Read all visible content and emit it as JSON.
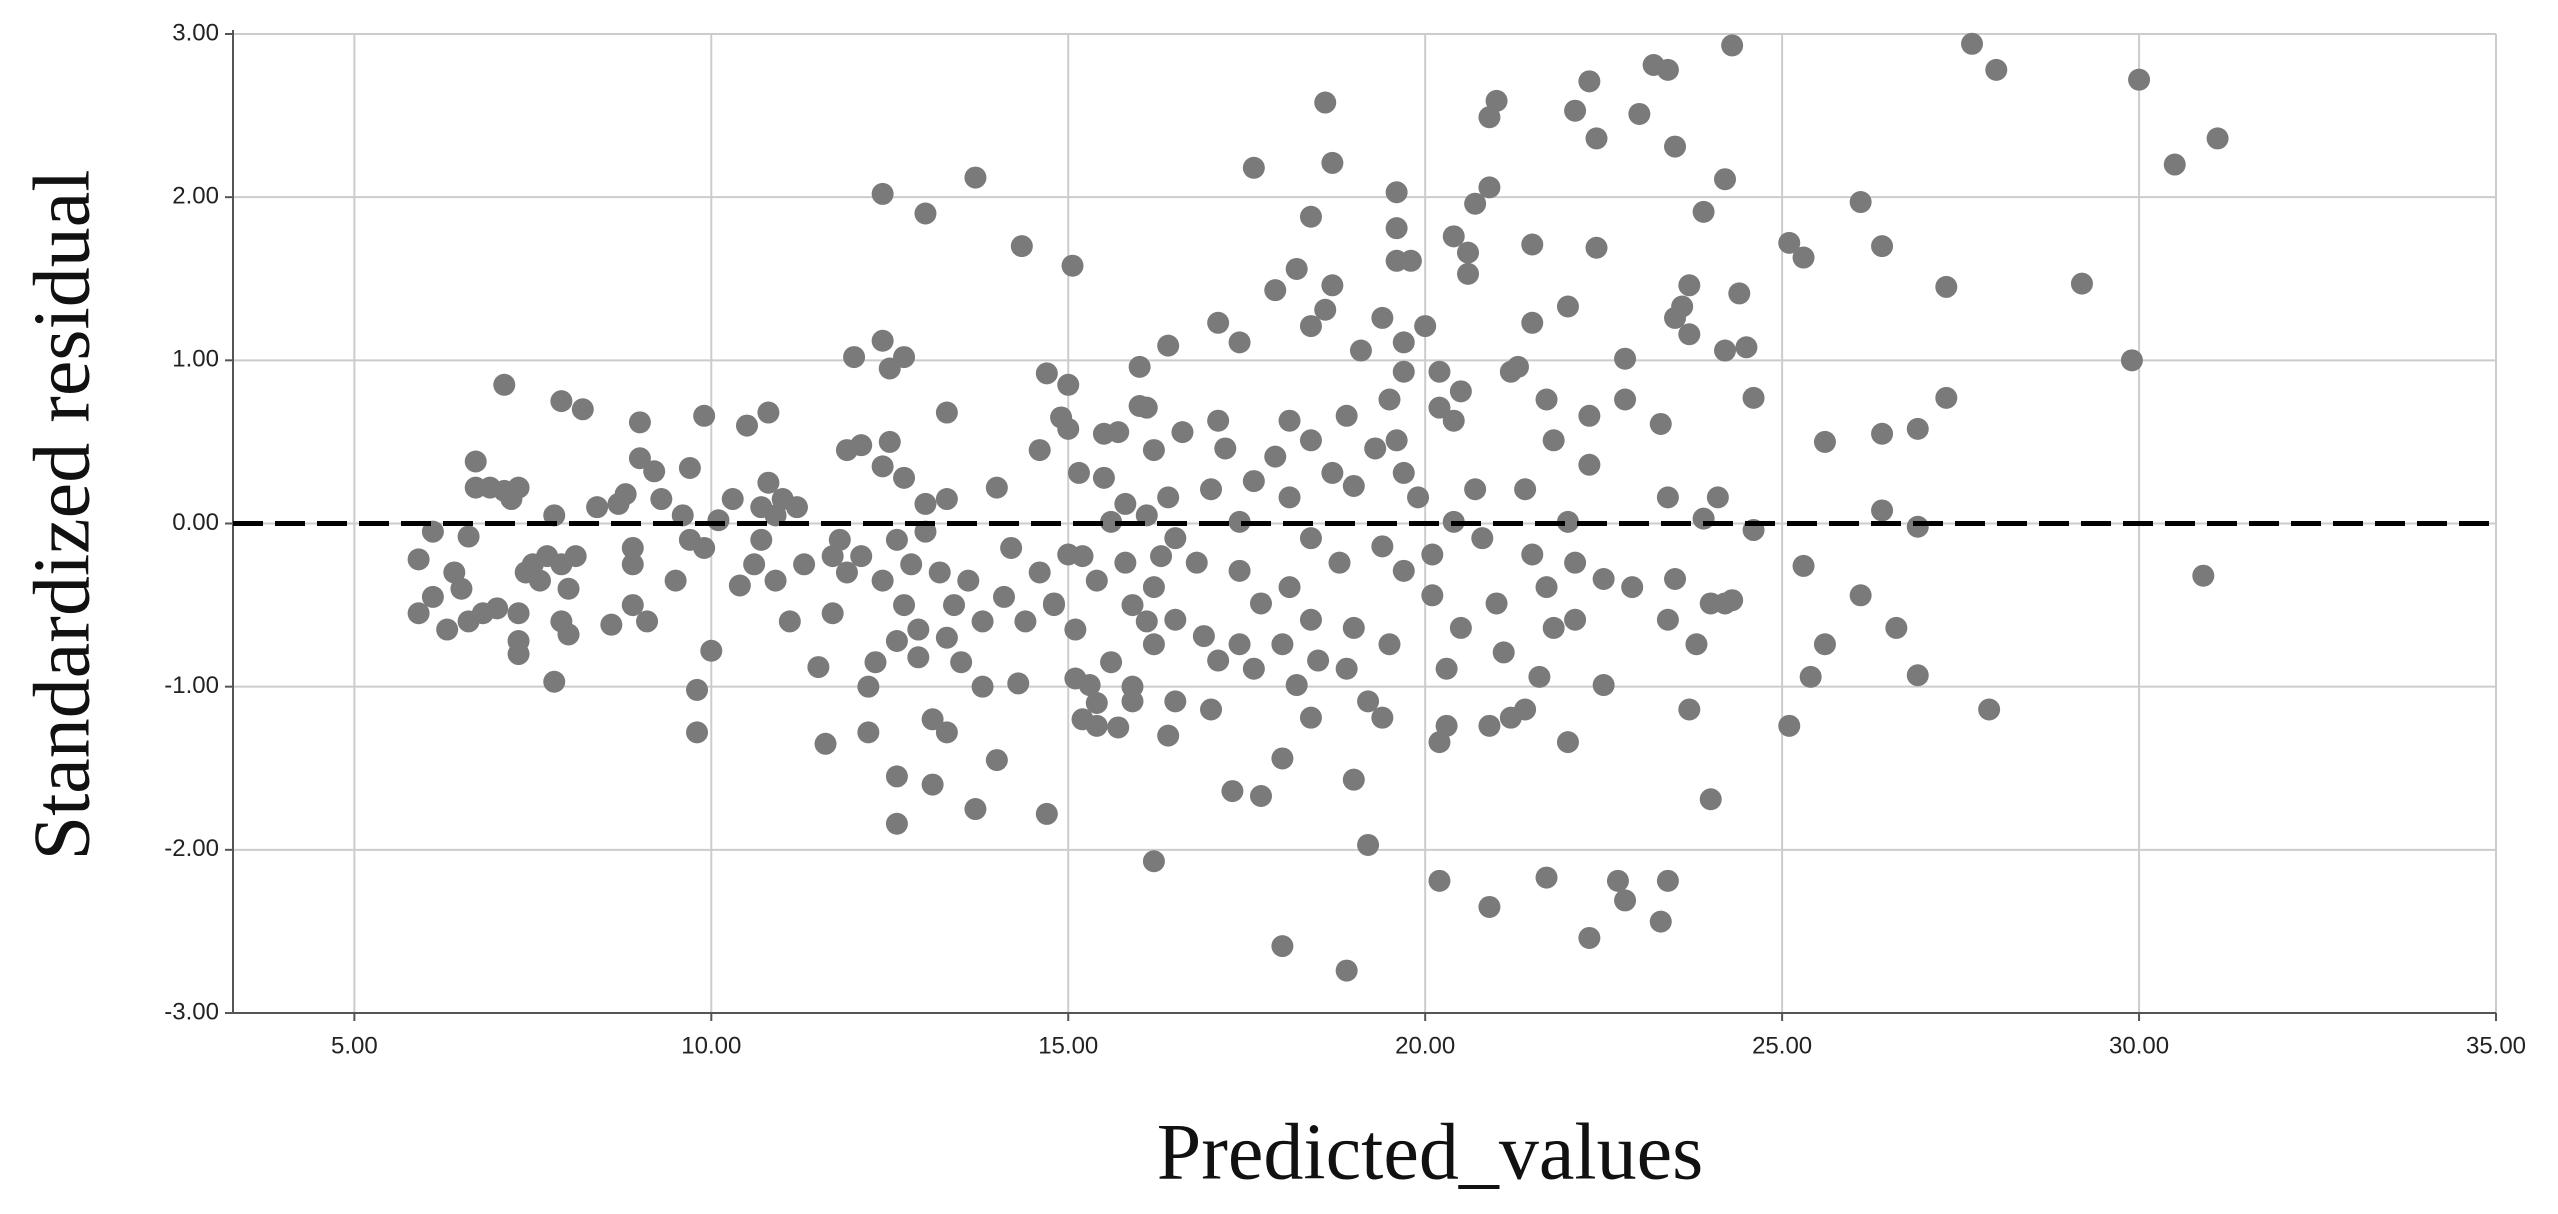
{
  "chart_data": {
    "type": "scatter",
    "x_label": "Predicted_values",
    "y_label": "Standardized residual",
    "color": "#7a7a7a",
    "grid": true,
    "xlim": [
      3.3,
      35.0
    ],
    "ylim": [
      -3.0,
      3.0
    ],
    "xticks": [
      {
        "value": 5,
        "label": "5.00"
      },
      {
        "value": 10,
        "label": "10.00"
      },
      {
        "value": 15,
        "label": "15.00"
      },
      {
        "value": 20,
        "label": "20.00"
      },
      {
        "value": 25,
        "label": "25.00"
      },
      {
        "value": 30,
        "label": "30.00"
      },
      {
        "value": 35,
        "label": "35.00"
      }
    ],
    "yticks": [
      {
        "value": -3,
        "label": "-3.00"
      },
      {
        "value": -2,
        "label": "-2.00"
      },
      {
        "value": -1,
        "label": "-1.00"
      },
      {
        "value": 0,
        "label": "0.00"
      },
      {
        "value": 1,
        "label": "1.00"
      },
      {
        "value": 2,
        "label": "2.00"
      },
      {
        "value": 3,
        "label": "3.00"
      }
    ],
    "reference_line": {
      "value": 0,
      "style": "dashed",
      "color": "#000000"
    },
    "x": [
      5.9,
      5.9,
      6.1,
      6.1,
      6.3,
      6.4,
      6.5,
      6.6,
      6.6,
      6.7,
      6.7,
      6.8,
      6.9,
      7.0,
      7.1,
      7.1,
      7.2,
      7.3,
      7.3,
      7.3,
      7.3,
      7.4,
      7.5,
      7.6,
      7.7,
      7.8,
      7.8,
      7.9,
      7.9,
      7.9,
      8.0,
      8.0,
      8.1,
      8.2,
      8.4,
      8.6,
      8.7,
      8.8,
      8.9,
      8.9,
      8.9,
      9.0,
      9.0,
      9.1,
      9.2,
      9.3,
      9.5,
      9.6,
      9.7,
      9.7,
      9.8,
      9.8,
      9.9,
      9.9,
      10.0,
      10.1,
      10.3,
      10.4,
      10.5,
      10.6,
      10.7,
      10.7,
      10.8,
      10.8,
      10.9,
      10.9,
      11.0,
      11.1,
      11.2,
      11.3,
      11.5,
      11.6,
      11.7,
      11.7,
      11.8,
      11.9,
      11.9,
      12.0,
      12.1,
      12.1,
      12.2,
      12.2,
      12.3,
      12.4,
      12.4,
      12.4,
      12.4,
      12.5,
      12.5,
      12.6,
      12.6,
      12.6,
      12.6,
      12.7,
      12.7,
      12.7,
      12.8,
      12.9,
      12.9,
      13.0,
      13.0,
      13.1,
      13.1,
      13.0,
      13.2,
      13.3,
      13.3,
      13.3,
      13.3,
      13.4,
      13.5,
      13.6,
      13.7,
      13.8,
      13.8,
      13.7,
      14.0,
      14.0,
      14.1,
      14.2,
      14.3,
      14.4,
      14.35,
      14.6,
      14.6,
      14.7,
      14.7,
      14.8,
      14.9,
      15.0,
      15.0,
      15.1,
      15.1,
      15.2,
      15.2,
      15.06,
      15.4,
      15.4,
      15.5,
      15.5,
      15.6,
      15.7,
      15.8,
      15.9,
      15.9,
      16.0,
      16.1,
      16.1,
      16.2,
      16.3,
      16.4,
      16.2,
      15.15,
      15.7,
      16.1,
      16.4,
      16.0,
      15.6,
      15.8,
      16.2,
      16.5,
      16.8,
      17.0,
      16.9,
      16.5,
      17.1,
      17.0,
      17.2,
      16.5,
      16.2,
      15.9,
      15.4,
      15.3,
      14.8,
      15.0,
      16.4,
      16.6,
      17.4,
      17.4,
      17.6,
      18.6,
      18.7,
      17.6,
      19.6,
      19.6,
      19.6,
      19.8,
      18.4,
      18.2,
      17.9,
      18.7,
      18.6,
      18.4,
      19.4,
      19.7,
      20.0,
      19.1,
      19.7,
      19.5,
      20.2,
      17.1,
      17.4,
      17.1,
      18.1,
      18.9,
      19.3,
      19.6,
      18.4,
      17.9,
      17.6,
      18.7,
      19.0,
      19.7,
      19.9,
      18.1,
      17.4,
      18.4,
      18.8,
      19.4,
      19.7,
      20.1,
      18.1,
      17.7,
      18.4,
      19.0,
      19.5,
      18.0,
      18.5,
      18.9,
      18.2,
      19.2,
      18.4,
      19.4,
      18.0,
      19.0,
      19.2,
      17.3,
      17.7,
      18.0,
      18.9,
      20.2,
      20.9,
      21.7,
      22.3,
      22.7,
      22.8,
      23.3,
      23.4,
      20.4,
      20.5,
      20.2,
      20.4,
      20.6,
      20.6,
      20.7,
      20.9,
      20.9,
      21.0,
      21.2,
      21.3,
      21.5,
      21.5,
      21.7,
      21.8,
      22.0,
      22.1,
      22.3,
      22.4,
      22.4,
      22.3,
      22.3,
      22.8,
      23.0,
      23.2,
      23.4,
      23.5,
      23.3,
      23.5,
      23.6,
      23.7,
      23.7,
      22.8,
      23.4,
      23.5,
      23.4,
      23.7,
      23.8,
      23.9,
      23.9,
      24.2,
      24.3,
      22.9,
      22.5,
      22.5,
      22.1,
      22.1,
      22.0,
      21.6,
      21.4,
      21.2,
      21.1,
      21.0,
      20.9,
      20.8,
      20.7,
      20.4,
      20.3,
      20.2,
      20.3,
      20.5,
      20.1,
      21.4,
      21.5,
      21.7,
      21.8,
      22.0,
      27.66,
      30.0,
      28.0,
      30.5,
      31.1,
      30.9,
      29.9,
      29.2,
      27.9,
      27.3,
      27.3,
      26.9,
      26.9,
      26.9,
      26.6,
      26.4,
      26.4,
      26.4,
      26.1,
      26.1,
      25.6,
      25.6,
      25.3,
      25.4,
      25.3,
      25.1,
      25.1,
      24.6,
      24.5,
      24.6,
      24.3,
      24.4,
      24.2,
      24.2,
      24.1,
      24.0,
      24.0
    ],
    "values": [
      -0.22,
      -0.55,
      -0.05,
      -0.45,
      -0.65,
      -0.3,
      -0.4,
      -0.08,
      -0.6,
      0.38,
      0.22,
      -0.55,
      0.22,
      -0.52,
      0.2,
      0.85,
      0.15,
      0.22,
      -0.55,
      -0.72,
      -0.8,
      -0.3,
      -0.25,
      -0.35,
      -0.2,
      -0.97,
      0.05,
      0.75,
      -0.6,
      -0.25,
      -0.4,
      -0.68,
      -0.2,
      0.7,
      0.1,
      -0.62,
      0.12,
      0.18,
      -0.15,
      -0.25,
      -0.5,
      0.62,
      0.4,
      -0.6,
      0.32,
      0.15,
      -0.35,
      0.05,
      0.34,
      -0.1,
      -1.02,
      -1.28,
      0.66,
      -0.15,
      -0.78,
      0.02,
      0.15,
      -0.38,
      0.6,
      -0.25,
      0.1,
      -0.1,
      0.68,
      0.25,
      -0.35,
      0.05,
      0.15,
      -0.6,
      0.1,
      -0.25,
      -0.88,
      -1.35,
      -0.2,
      -0.55,
      -0.1,
      0.45,
      -0.3,
      1.02,
      0.48,
      -0.2,
      -1.0,
      -1.28,
      -0.85,
      -0.35,
      1.12,
      0.35,
      2.02,
      0.5,
      0.95,
      -0.1,
      -0.72,
      -1.55,
      -1.84,
      1.02,
      0.28,
      -0.5,
      -0.25,
      -0.82,
      -0.65,
      0.12,
      -0.05,
      -1.6,
      -1.2,
      1.9,
      -0.3,
      0.68,
      0.15,
      -0.7,
      -1.28,
      -0.5,
      -0.85,
      -0.35,
      -1.75,
      -1.0,
      -0.6,
      2.12,
      0.22,
      -1.45,
      -0.45,
      -0.15,
      -0.98,
      -0.6,
      1.7,
      0.45,
      -0.3,
      0.92,
      -1.78,
      -0.5,
      0.65,
      0.85,
      0.58,
      -0.65,
      -0.95,
      -1.2,
      -0.2,
      1.58,
      -0.35,
      -1.1,
      0.55,
      0.28,
      -0.85,
      -1.25,
      0.12,
      -0.5,
      -1.0,
      0.72,
      0.05,
      -0.6,
      0.45,
      -0.2,
      -1.3,
      -2.07,
      0.31,
      0.56,
      0.71,
      1.09,
      0.96,
      0.01,
      -0.24,
      -0.39,
      -0.59,
      -0.24,
      0.21,
      -0.69,
      -1.09,
      -0.84,
      -1.14,
      0.46,
      -0.09,
      -0.74,
      -1.09,
      -1.24,
      -0.99,
      -0.49,
      -0.19,
      0.16,
      0.56,
      -0.29,
      -0.74,
      -0.89,
      2.58,
      2.21,
      2.18,
      2.03,
      1.81,
      1.61,
      1.61,
      1.88,
      1.56,
      1.43,
      1.46,
      1.31,
      1.21,
      1.26,
      1.11,
      1.21,
      1.06,
      0.93,
      0.76,
      0.71,
      1.23,
      1.11,
      0.63,
      0.63,
      0.66,
      0.46,
      0.51,
      0.51,
      0.41,
      0.26,
      0.31,
      0.23,
      0.31,
      0.16,
      0.16,
      0.01,
      -0.09,
      -0.24,
      -0.14,
      -0.29,
      -0.44,
      -0.39,
      -0.49,
      -0.59,
      -0.64,
      -0.74,
      -0.74,
      -0.84,
      -0.89,
      -0.99,
      -1.09,
      -1.19,
      -1.19,
      -1.44,
      -1.57,
      -1.97,
      -1.64,
      -1.67,
      -2.59,
      -2.74,
      -2.19,
      -2.35,
      -2.17,
      -2.54,
      -2.19,
      -2.31,
      -2.44,
      -2.19,
      0.63,
      0.81,
      0.93,
      1.76,
      1.66,
      1.53,
      1.96,
      2.06,
      2.49,
      2.59,
      0.93,
      0.96,
      1.71,
      1.23,
      0.76,
      0.51,
      1.33,
      2.53,
      2.71,
      2.36,
      1.69,
      0.66,
      0.36,
      1.01,
      2.51,
      2.81,
      2.78,
      2.31,
      0.61,
      1.26,
      1.33,
      1.46,
      1.16,
      0.76,
      0.16,
      -0.34,
      -0.59,
      -1.14,
      -0.74,
      1.91,
      0.03,
      -0.49,
      -0.47,
      -0.39,
      -0.34,
      -0.99,
      -0.24,
      -0.59,
      -1.34,
      -0.94,
      -1.14,
      -1.19,
      -0.79,
      -0.49,
      -1.24,
      -0.09,
      0.21,
      0.01,
      -1.24,
      -1.34,
      -0.89,
      -0.64,
      -0.19,
      0.21,
      -0.19,
      -0.39,
      -0.64,
      0.01,
      2.94,
      2.72,
      2.78,
      2.2,
      2.36,
      -0.32,
      1.0,
      1.47,
      -1.14,
      1.45,
      0.77,
      0.58,
      -0.93,
      -0.02,
      -0.64,
      1.7,
      0.55,
      0.08,
      1.97,
      -0.44,
      0.5,
      -0.74,
      1.63,
      -0.94,
      -0.26,
      1.72,
      -1.24,
      0.77,
      1.08,
      -0.04,
      2.93,
      1.41,
      1.06,
      2.11,
      0.16,
      -0.49,
      -1.69
    ]
  }
}
